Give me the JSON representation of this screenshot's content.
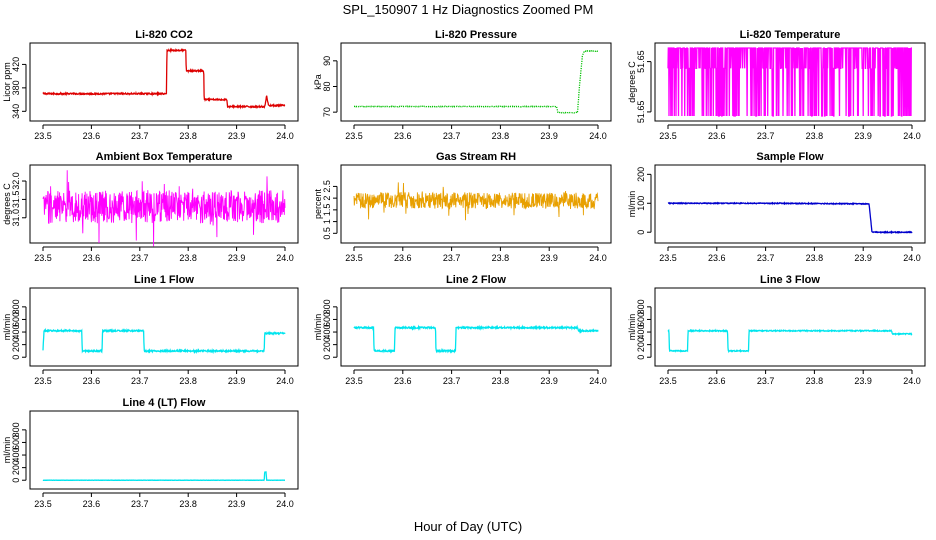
{
  "figure": {
    "title": "SPL_150907  1 Hz Diagnostics Zoomed PM",
    "xlabel": "Hour of Day (UTC)"
  },
  "chart_data": [
    {
      "type": "line",
      "title": "Li-820 CO2",
      "xlabel": "",
      "ylabel": "Licor ppm",
      "xlim": [
        23.5,
        24.0
      ],
      "ylim": [
        332,
        448
      ],
      "xticks": [
        23.5,
        23.6,
        23.7,
        23.8,
        23.9,
        24.0
      ],
      "yticks": [
        340,
        380,
        420
      ],
      "series": [
        {
          "color": "#dd0000",
          "style": "step",
          "noise": 1.2,
          "x": [
            23.5,
            23.755,
            23.756,
            23.795,
            23.796,
            23.832,
            23.833,
            23.88,
            23.881,
            23.958,
            23.962,
            23.966,
            24.0
          ],
          "y": [
            370,
            370,
            444,
            444,
            409,
            409,
            360,
            360,
            348,
            348,
            366,
            350,
            350
          ]
        }
      ]
    },
    {
      "type": "line",
      "title": "Li-820 Pressure",
      "xlabel": "",
      "ylabel": "kPa",
      "xlim": [
        23.5,
        24.0
      ],
      "ylim": [
        68.5,
        95
      ],
      "xticks": [
        23.5,
        23.6,
        23.7,
        23.8,
        23.9,
        24.0
      ],
      "yticks": [
        70,
        80,
        90
      ],
      "series": [
        {
          "color": "#00c000",
          "style": "points",
          "noise": 0.1,
          "x": [
            23.5,
            23.915,
            23.918,
            23.958,
            23.962,
            23.968,
            23.972,
            24.0
          ],
          "y": [
            72.2,
            72.2,
            69.8,
            69.8,
            80,
            92,
            93.8,
            93.8
          ]
        }
      ]
    },
    {
      "type": "line",
      "title": "Li-820 Temperature",
      "xlabel": "",
      "ylabel": "degrees C",
      "xlim": [
        23.5,
        24.0
      ],
      "ylim": [
        51.6495,
        51.6505
      ],
      "xticks": [
        23.5,
        23.6,
        23.7,
        23.8,
        23.9,
        24.0
      ],
      "yticks": [
        51.65,
        51.65
      ],
      "ytick_labels": [
        "51.65",
        "51.65"
      ],
      "series": [
        {
          "color": "#ff00ff",
          "style": "switch",
          "x": [
            23.5,
            24.0
          ],
          "levels": [
            51.6495,
            51.6502,
            51.6505
          ]
        }
      ]
    },
    {
      "type": "line",
      "title": "Ambient Box Temperature",
      "xlabel": "",
      "ylabel": "degrees C",
      "xlim": [
        23.5,
        24.0
      ],
      "ylim": [
        30.45,
        32.3
      ],
      "xticks": [
        23.5,
        23.6,
        23.7,
        23.8,
        23.9,
        24.0
      ],
      "yticks": [
        31.0,
        31.5,
        32.0
      ],
      "ytick_labels": [
        "31.0",
        "31.5",
        "32.0"
      ],
      "series": [
        {
          "color": "#ff00ff",
          "style": "dense",
          "noise": 0.45,
          "x": [
            23.5,
            24.0
          ],
          "y": [
            31.3,
            31.3
          ]
        }
      ]
    },
    {
      "type": "line",
      "title": "Gas Stream RH",
      "xlabel": "",
      "ylabel": "percent",
      "xlim": [
        23.5,
        24.0
      ],
      "ylim": [
        0.3,
        3.2
      ],
      "xticks": [
        23.5,
        23.6,
        23.7,
        23.8,
        23.9,
        24.0
      ],
      "yticks": [
        0.5,
        1.0,
        1.5,
        2.0,
        2.5
      ],
      "ytick_labels": [
        "0.5",
        "1",
        "1.5",
        "2",
        "2.5"
      ],
      "series": [
        {
          "color": "#e8a000",
          "style": "dense",
          "noise": 0.35,
          "x": [
            23.5,
            24.0
          ],
          "y": [
            1.9,
            1.9
          ]
        }
      ]
    },
    {
      "type": "line",
      "title": "Sample Flow",
      "xlabel": "",
      "ylabel": "ml/min",
      "xlim": [
        23.5,
        24.0
      ],
      "ylim": [
        -20,
        215
      ],
      "xticks": [
        23.5,
        23.6,
        23.7,
        23.8,
        23.9,
        24.0
      ],
      "yticks": [
        0,
        100,
        200
      ],
      "series": [
        {
          "color": "#0000cc",
          "style": "step",
          "noise": 1.5,
          "x": [
            23.5,
            23.7,
            23.912,
            23.918,
            23.93,
            24.0
          ],
          "y": [
            100,
            100,
            98,
            0,
            0,
            0
          ]
        }
      ]
    },
    {
      "type": "line",
      "title": "Line 1 Flow",
      "xlabel": "",
      "ylabel": "ml/min",
      "xlim": [
        23.5,
        24.0
      ],
      "ylim": [
        -60,
        1020
      ],
      "xticks": [
        23.5,
        23.6,
        23.7,
        23.8,
        23.9,
        24.0
      ],
      "yticks": [
        0,
        200,
        400,
        600,
        800
      ],
      "series": [
        {
          "color": "#00e5ee",
          "style": "step",
          "noise": 12,
          "x": [
            23.5,
            23.502,
            23.58,
            23.581,
            23.622,
            23.623,
            23.708,
            23.709,
            23.957,
            23.958,
            24.0
          ],
          "y": [
            100,
            420,
            420,
            100,
            100,
            420,
            420,
            100,
            100,
            380,
            380
          ]
        }
      ]
    },
    {
      "type": "line",
      "title": "Line 2 Flow",
      "xlabel": "",
      "ylabel": "ml/min",
      "xlim": [
        23.5,
        24.0
      ],
      "ylim": [
        -60,
        1020
      ],
      "xticks": [
        23.5,
        23.6,
        23.7,
        23.8,
        23.9,
        24.0
      ],
      "yticks": [
        0,
        200,
        400,
        600,
        800
      ],
      "series": [
        {
          "color": "#00e5ee",
          "style": "step",
          "noise": 12,
          "x": [
            23.5,
            23.54,
            23.541,
            23.583,
            23.584,
            23.667,
            23.668,
            23.708,
            23.709,
            23.958,
            23.96,
            24.0
          ],
          "y": [
            470,
            470,
            100,
            100,
            470,
            470,
            100,
            100,
            470,
            470,
            420,
            420
          ]
        }
      ]
    },
    {
      "type": "line",
      "title": "Line 3 Flow",
      "xlabel": "",
      "ylabel": "ml/min",
      "xlim": [
        23.5,
        24.0
      ],
      "ylim": [
        -60,
        1020
      ],
      "xticks": [
        23.5,
        23.6,
        23.7,
        23.8,
        23.9,
        24.0
      ],
      "yticks": [
        0,
        200,
        400,
        600,
        800
      ],
      "series": [
        {
          "color": "#00e5ee",
          "style": "step",
          "noise": 8,
          "x": [
            23.5,
            23.502,
            23.503,
            23.54,
            23.541,
            23.622,
            23.623,
            23.665,
            23.666,
            23.958,
            23.96,
            24.0
          ],
          "y": [
            420,
            420,
            100,
            100,
            420,
            420,
            100,
            100,
            420,
            420,
            370,
            370
          ]
        }
      ]
    },
    {
      "type": "line",
      "title": "Line 4 (LT) Flow",
      "xlabel": "",
      "ylabel": "ml/min",
      "xlim": [
        23.5,
        24.0
      ],
      "ylim": [
        -60,
        1020
      ],
      "xticks": [
        23.5,
        23.6,
        23.7,
        23.8,
        23.9,
        24.0
      ],
      "yticks": [
        0,
        200,
        400,
        600,
        800
      ],
      "series": [
        {
          "color": "#00e5ee",
          "style": "step",
          "noise": 2,
          "x": [
            23.5,
            23.957,
            23.958,
            23.961,
            23.962,
            24.0
          ],
          "y": [
            0,
            0,
            130,
            130,
            0,
            0
          ]
        }
      ]
    }
  ]
}
